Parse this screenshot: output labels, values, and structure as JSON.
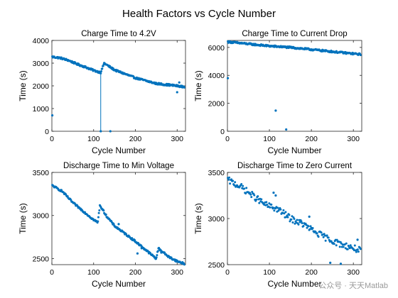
{
  "figure": {
    "title": "Health Factors vs Cycle Number",
    "watermark": "公众号 · 天天Matlab"
  },
  "colors": {
    "series": "#0072BD",
    "axes": "#262626"
  },
  "chart_data": [
    {
      "type": "scatter",
      "title": "Charge Time to 4.2V",
      "xlabel": "Cycle Number",
      "ylabel": "Time (s)",
      "xlim": [
        0,
        320
      ],
      "ylim": [
        0,
        4000
      ],
      "xticks": [
        0,
        100,
        200,
        300
      ],
      "yticks": [
        0,
        1000,
        2000,
        3000,
        4000
      ],
      "connected_segment": [
        [
          117,
          2600
        ],
        [
          117,
          0
        ],
        [
          118,
          0
        ]
      ],
      "series": [
        {
          "trend": [
            [
              0,
              3280
            ],
            [
              20,
              3230
            ],
            [
              40,
              3120
            ],
            [
              60,
              2960
            ],
            [
              80,
              2830
            ],
            [
              100,
              2680
            ],
            [
              115,
              2600
            ],
            [
              117,
              2580
            ],
            [
              125,
              3000
            ],
            [
              150,
              2700
            ],
            [
              200,
              2350
            ],
            [
              250,
              2100
            ],
            [
              300,
              2000
            ],
            [
              318,
              1950
            ]
          ],
          "points": [
            [
              1,
              700
            ],
            [
              117,
              0
            ],
            [
              140,
              0
            ],
            [
              300,
              1720
            ],
            [
              305,
              2150
            ],
            [
              280,
              2080
            ]
          ]
        }
      ]
    },
    {
      "type": "scatter",
      "title": "Charge Time to Current Drop",
      "xlabel": "Cycle Number",
      "ylabel": "Time (s)",
      "xlim": [
        0,
        320
      ],
      "ylim": [
        0,
        6500
      ],
      "xticks": [
        0,
        100,
        200,
        300
      ],
      "yticks": [
        0,
        2000,
        4000,
        6000
      ],
      "series": [
        {
          "trend": [
            [
              0,
              6400
            ],
            [
              50,
              6250
            ],
            [
              100,
              6100
            ],
            [
              150,
              6000
            ],
            [
              200,
              5850
            ],
            [
              250,
              5700
            ],
            [
              300,
              5550
            ],
            [
              318,
              5500
            ]
          ],
          "points": [
            [
              1,
              3800
            ],
            [
              115,
              1480
            ],
            [
              140,
              130
            ]
          ]
        }
      ]
    },
    {
      "type": "scatter",
      "title": "Discharge Time to Min Voltage",
      "xlabel": "Cycle Number",
      "ylabel": "Time (s)",
      "xlim": [
        0,
        320
      ],
      "ylim": [
        2430,
        3500
      ],
      "xticks": [
        0,
        100,
        200,
        300
      ],
      "yticks": [
        2500,
        3000,
        3500
      ],
      "series": [
        {
          "trend": [
            [
              0,
              3350
            ],
            [
              25,
              3280
            ],
            [
              50,
              3150
            ],
            [
              75,
              3050
            ],
            [
              100,
              2950
            ],
            [
              110,
              2920
            ],
            [
              115,
              3120
            ],
            [
              130,
              3000
            ],
            [
              150,
              2880
            ],
            [
              200,
              2700
            ],
            [
              230,
              2580
            ],
            [
              250,
              2500
            ],
            [
              255,
              2620
            ],
            [
              280,
              2520
            ],
            [
              300,
              2470
            ],
            [
              318,
              2440
            ]
          ],
          "points": [
            [
              160,
              2900
            ],
            [
              205,
              2560
            ],
            [
              215,
              2620
            ],
            [
              262,
              2570
            ]
          ]
        }
      ]
    },
    {
      "type": "scatter",
      "title": "Discharge Time to Zero Current",
      "xlabel": "Cycle Number",
      "ylabel": "Time (s)",
      "xlim": [
        0,
        320
      ],
      "ylim": [
        2500,
        3500
      ],
      "xticks": [
        0,
        100,
        200,
        300
      ],
      "yticks": [
        2500,
        3000,
        3500
      ],
      "series": [
        {
          "trend": [
            [
              0,
              3420
            ],
            [
              30,
              3350
            ],
            [
              60,
              3250
            ],
            [
              90,
              3150
            ],
            [
              120,
              3100
            ],
            [
              150,
              3000
            ],
            [
              180,
              2940
            ],
            [
              210,
              2850
            ],
            [
              240,
              2780
            ],
            [
              270,
              2720
            ],
            [
              300,
              2680
            ],
            [
              318,
              2650
            ]
          ],
          "points": [
            [
              110,
              3280
            ],
            [
              115,
              3250
            ],
            [
              245,
              2520
            ],
            [
              270,
              2510
            ],
            [
              310,
              2770
            ],
            [
              195,
              3020
            ]
          ]
        }
      ]
    }
  ]
}
